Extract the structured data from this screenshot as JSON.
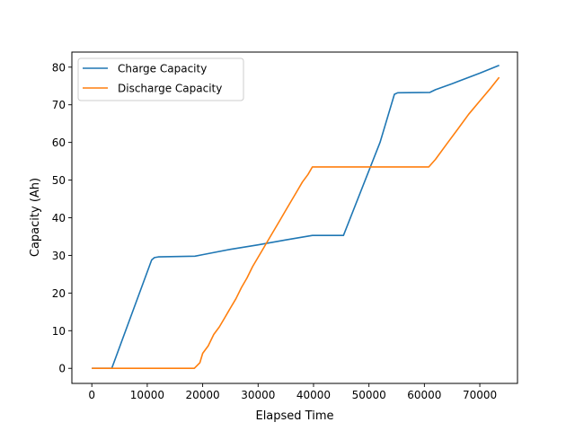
{
  "chart_data": {
    "type": "line",
    "title": "",
    "xlabel": "Elapsed Time",
    "ylabel": "Capacity (Ah)",
    "xlim": [
      -3600,
      76800
    ],
    "ylim": [
      -4,
      84
    ],
    "xticks": [
      0,
      10000,
      20000,
      30000,
      40000,
      50000,
      60000,
      70000
    ],
    "yticks": [
      0,
      10,
      20,
      30,
      40,
      50,
      60,
      70,
      80
    ],
    "grid": false,
    "legend_position": "top-left",
    "series": [
      {
        "name": "Charge Capacity",
        "color": "#1f77b4",
        "points": [
          [
            0,
            0
          ],
          [
            3600,
            0
          ],
          [
            10800,
            28.8
          ],
          [
            11300,
            29.4
          ],
          [
            12000,
            29.6
          ],
          [
            18600,
            29.8
          ],
          [
            20000,
            30.2
          ],
          [
            25000,
            31.6
          ],
          [
            30000,
            32.8
          ],
          [
            35000,
            34.1
          ],
          [
            39800,
            35.3
          ],
          [
            45400,
            35.3
          ],
          [
            52000,
            60.0
          ],
          [
            54600,
            72.8
          ],
          [
            55200,
            73.2
          ],
          [
            61000,
            73.3
          ],
          [
            62000,
            74.0
          ],
          [
            65000,
            75.6
          ],
          [
            70000,
            78.4
          ],
          [
            73500,
            80.5
          ]
        ]
      },
      {
        "name": "Discharge Capacity",
        "color": "#ff7f0e",
        "points": [
          [
            0,
            0
          ],
          [
            18500,
            0
          ],
          [
            19500,
            1.5
          ],
          [
            20000,
            4.0
          ],
          [
            21000,
            6.0
          ],
          [
            22000,
            9.0
          ],
          [
            23000,
            11.0
          ],
          [
            24000,
            13.5
          ],
          [
            25000,
            16.0
          ],
          [
            26000,
            18.5
          ],
          [
            27000,
            21.5
          ],
          [
            28000,
            24.0
          ],
          [
            29000,
            27.0
          ],
          [
            30000,
            29.5
          ],
          [
            31000,
            32.0
          ],
          [
            32000,
            34.5
          ],
          [
            33000,
            37.0
          ],
          [
            34000,
            39.5
          ],
          [
            35000,
            42.0
          ],
          [
            36000,
            44.5
          ],
          [
            37000,
            47.0
          ],
          [
            38000,
            49.5
          ],
          [
            39000,
            51.5
          ],
          [
            39800,
            53.5
          ],
          [
            60800,
            53.5
          ],
          [
            62000,
            55.5
          ],
          [
            64000,
            59.5
          ],
          [
            66000,
            63.5
          ],
          [
            68000,
            67.5
          ],
          [
            70000,
            71.0
          ],
          [
            72000,
            74.5
          ],
          [
            73500,
            77.3
          ]
        ]
      }
    ]
  }
}
